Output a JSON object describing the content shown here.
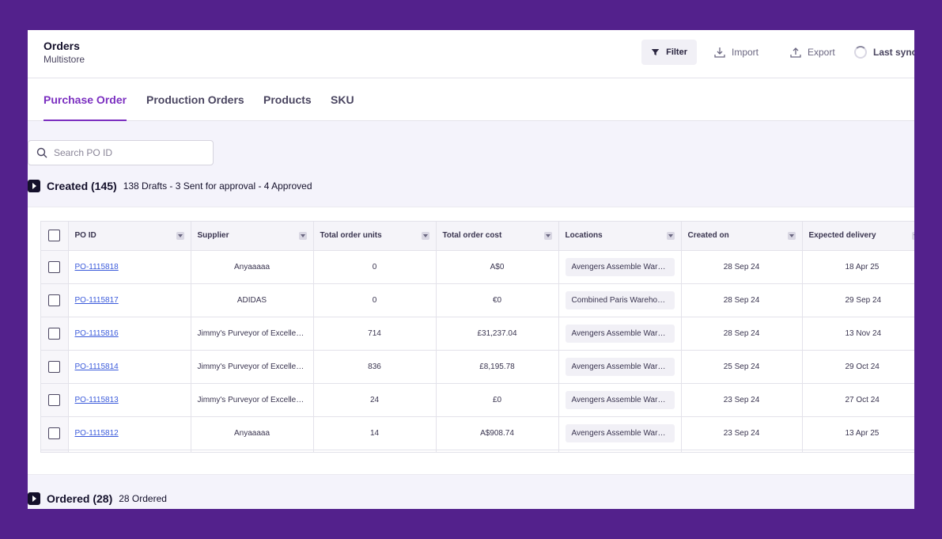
{
  "header": {
    "title": "Orders",
    "subtitle": "Multistore"
  },
  "toolbar": {
    "filter_label": "Filter",
    "import_label": "Import",
    "export_label": "Export",
    "sync_label": "Last sync"
  },
  "tabs": [
    {
      "label": "Purchase Order"
    },
    {
      "label": "Production Orders"
    },
    {
      "label": "Products"
    },
    {
      "label": "SKU"
    }
  ],
  "search": {
    "placeholder": "Search PO ID",
    "value": ""
  },
  "created": {
    "title": "Created (145)",
    "summary": "138 Drafts - 3 Sent for approval - 4 Approved"
  },
  "ordered": {
    "title": "Ordered (28)",
    "summary": "28 Ordered"
  },
  "table": {
    "columns": [
      "PO ID",
      "Supplier",
      "Total order units",
      "Total order cost",
      "Locations",
      "Created on",
      "Expected delivery"
    ],
    "rows": [
      {
        "po_id": "PO-1115818",
        "supplier": "Anyaaaaa",
        "units": "0",
        "cost": "A$0",
        "location": "Avengers Assemble Warehouse",
        "created": "28 Sep 24",
        "expected": "18 Apr 25"
      },
      {
        "po_id": "PO-1115817",
        "supplier": "ADIDAS",
        "units": "0",
        "cost": "€0",
        "location": "Combined Paris Warehouse",
        "created": "28 Sep 24",
        "expected": "29 Sep 24"
      },
      {
        "po_id": "PO-1115816",
        "supplier": "Jimmy's Purveyor of Excellence",
        "units": "714",
        "cost": "£31,237.04",
        "location": "Avengers Assemble Warehouse",
        "created": "28 Sep 24",
        "expected": "13 Nov 24"
      },
      {
        "po_id": "PO-1115814",
        "supplier": "Jimmy's Purveyor of Excellence",
        "units": "836",
        "cost": "£8,195.78",
        "location": "Avengers Assemble Warehouse",
        "created": "25 Sep 24",
        "expected": "29 Oct 24"
      },
      {
        "po_id": "PO-1115813",
        "supplier": "Jimmy's Purveyor of Excellence",
        "units": "24",
        "cost": "£0",
        "location": "Avengers Assemble Warehouse",
        "created": "23 Sep 24",
        "expected": "27 Oct 24"
      },
      {
        "po_id": "PO-1115812",
        "supplier": "Anyaaaaa",
        "units": "14",
        "cost": "A$908.74",
        "location": "Avengers Assemble Warehouse",
        "created": "23 Sep 24",
        "expected": "13 Apr 25"
      }
    ]
  }
}
